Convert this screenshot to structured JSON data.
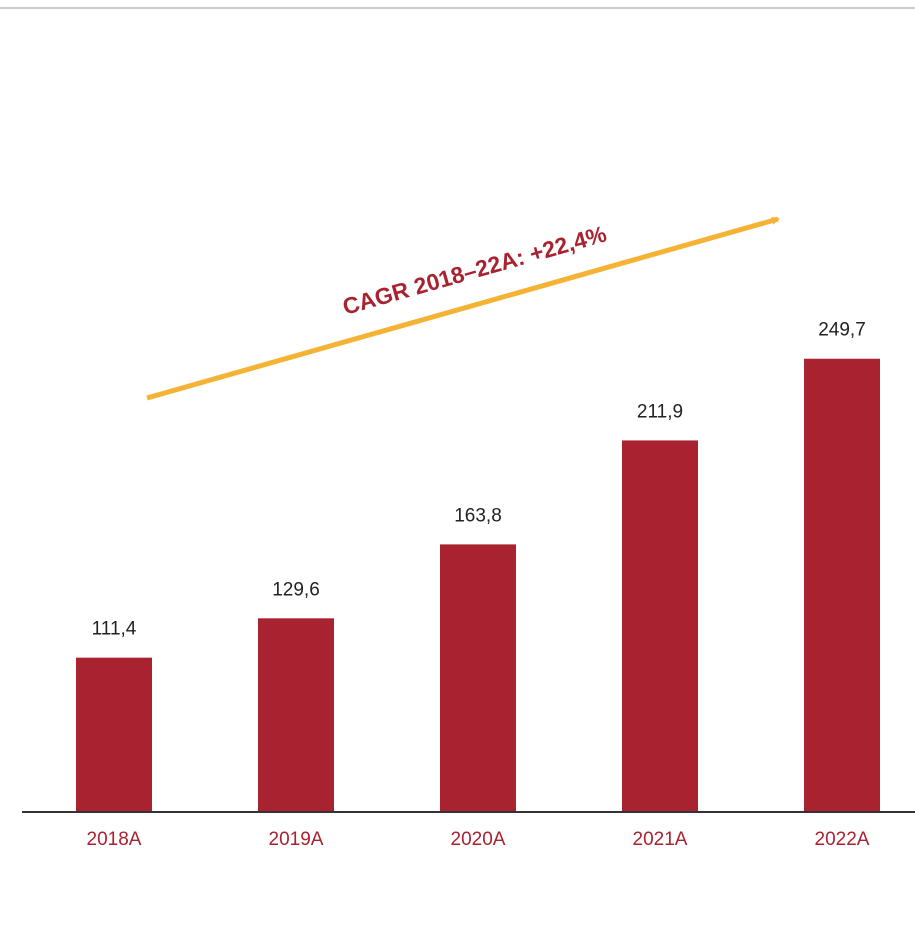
{
  "chart_data": {
    "type": "bar",
    "annotation": "CAGR 2018–22A: +22,4%",
    "categories": [
      "2018A",
      "2019A",
      "2020A",
      "2021A",
      "2022A"
    ],
    "values": [
      111.4,
      129.6,
      163.8,
      211.9,
      249.7
    ],
    "value_labels": [
      "111,4",
      "129,6",
      "163,8",
      "211,9",
      "249,7"
    ],
    "color": "#a8222f",
    "ylim": [
      40,
      300
    ]
  }
}
